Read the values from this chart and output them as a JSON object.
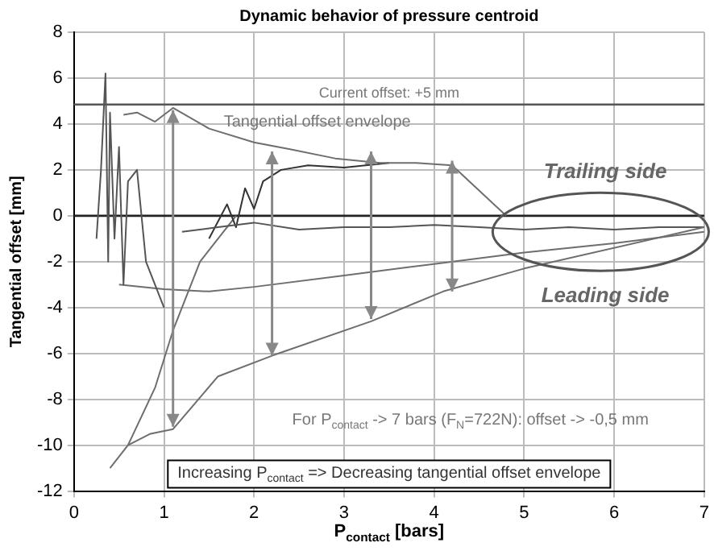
{
  "chart_data": {
    "type": "line",
    "title": "Dynamic behavior of pressure centroid",
    "xlabel": "P$_{contact}$ [bars]",
    "ylabel": "Tangential offset [mm]",
    "xlim": [
      0,
      7
    ],
    "xticks": [
      0,
      1,
      2,
      3,
      4,
      5,
      6,
      7
    ],
    "ylim": [
      -12,
      8
    ],
    "yticks": [
      -12,
      -10,
      -8,
      -6,
      -4,
      -2,
      0,
      2,
      4,
      6,
      8
    ],
    "grid": true,
    "legend": false,
    "marker": "none",
    "line_style": "solid",
    "series": [
      {
        "color": "#6e6e6e",
        "x": [
          0.55,
          0.7,
          0.9,
          1.1,
          1.5,
          2.0,
          2.4,
          2.9,
          3.4,
          3.8,
          4.2,
          4.8
        ],
        "values": [
          4.4,
          4.5,
          4.1,
          4.7,
          3.8,
          3.2,
          2.9,
          2.5,
          2.3,
          2.3,
          2.2,
          0
        ]
      },
      {
        "color": "#6e6e6e",
        "x": [
          0.4,
          0.6,
          0.85,
          1.1,
          1.6,
          2.2,
          3.3,
          4.1,
          5.0,
          7.0
        ],
        "values": [
          -11,
          -10,
          -9.5,
          -9.3,
          -7,
          -6.1,
          -4.6,
          -3.3,
          -2.3,
          -0.5
        ]
      },
      {
        "color": "#555555",
        "x": [
          1.2,
          1.6,
          2.0,
          2.5,
          3.0,
          3.5,
          4.0,
          4.5,
          5.0,
          5.5,
          6.0,
          6.5,
          7.0
        ],
        "values": [
          -0.7,
          -0.5,
          -0.3,
          -0.6,
          -0.5,
          -0.5,
          -0.4,
          -0.5,
          -0.6,
          -0.5,
          -0.6,
          -0.5,
          -0.5
        ]
      },
      {
        "color": "#555555",
        "x": [
          0.25,
          0.3,
          0.35,
          0.38,
          0.4,
          0.45,
          0.5,
          0.55,
          0.6,
          0.7,
          0.8,
          1.0
        ],
        "values": [
          -1,
          2,
          6.2,
          -2,
          4.5,
          -1,
          3,
          -3,
          1.5,
          2,
          -2,
          -4
        ]
      },
      {
        "color": "#6e6e6e",
        "x": [
          0.5,
          1.0,
          1.5,
          2.0,
          3.0,
          4.0,
          5.0,
          6.0,
          7.0
        ],
        "values": [
          -3,
          -3.2,
          -3.3,
          -3.1,
          -2.6,
          -2.1,
          -1.6,
          -1.2,
          -0.7
        ]
      },
      {
        "color": "#333333",
        "x": [
          1.5,
          1.7,
          1.8,
          1.9,
          2.0,
          2.1,
          2.3,
          2.6,
          3.0,
          3.5
        ],
        "values": [
          -1,
          0.5,
          -0.5,
          1.2,
          0.3,
          1.5,
          2,
          2.2,
          2.1,
          2.3
        ]
      },
      {
        "color": "#6e6e6e",
        "x": [
          0.6,
          0.9,
          1.1,
          1.4,
          1.8
        ],
        "values": [
          -10,
          -7.5,
          -5,
          -2,
          0
        ]
      }
    ],
    "ref_lines": [
      {
        "axis": "y",
        "value": 4.85,
        "label": "Current offset: +5 mm",
        "color": "#555555"
      },
      {
        "axis": "y",
        "value": 0,
        "color": "#222222"
      }
    ],
    "annotations": [
      "Tangential offset envelope",
      "Trailing side",
      "Leading side",
      "For P$_{contact}$ -> 7 bars (F$_{N}$=722N): offset -> -0,5 mm",
      "Increasing P$_{contact}$ => Decreasing tangential offset envelope"
    ]
  }
}
